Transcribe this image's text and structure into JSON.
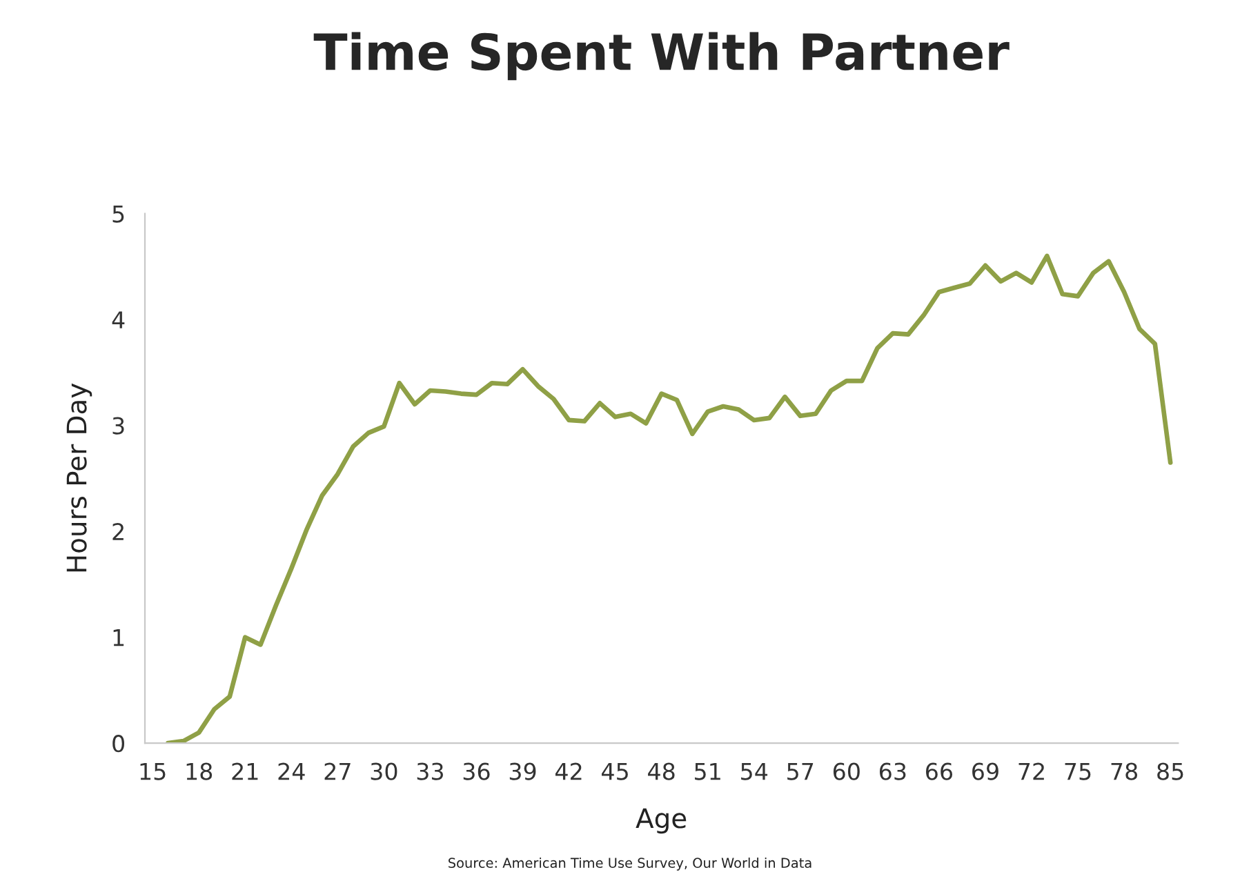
{
  "chart_data": {
    "type": "line",
    "title": "Time Spent With Partner",
    "xlabel": "Age",
    "ylabel": "Hours Per Day",
    "categories": [
      "15",
      null,
      null,
      "18",
      null,
      null,
      "21",
      null,
      null,
      "24",
      null,
      null,
      "27",
      null,
      null,
      "30",
      null,
      null,
      "33",
      null,
      null,
      "36",
      null,
      null,
      "39",
      null,
      null,
      "42",
      null,
      null,
      "45",
      null,
      null,
      "48",
      null,
      null,
      "51",
      null,
      null,
      "54",
      null,
      null,
      "57",
      null,
      null,
      "60",
      null,
      null,
      "63",
      null,
      null,
      "66",
      null,
      null,
      "69",
      null,
      null,
      "72",
      null,
      null,
      "75",
      null,
      null,
      "78",
      null,
      null,
      "85"
    ],
    "series": [
      {
        "color": "#8fa046",
        "values": [
          null,
          0.0,
          0.02,
          0.1,
          0.32,
          0.44,
          1.0,
          0.93,
          1.3,
          1.65,
          2.02,
          2.34,
          2.54,
          2.8,
          2.93,
          2.99,
          3.4,
          3.2,
          3.33,
          3.32,
          3.3,
          3.29,
          3.4,
          3.39,
          3.53,
          3.37,
          3.25,
          3.05,
          3.04,
          3.21,
          3.08,
          3.11,
          3.02,
          3.3,
          3.24,
          2.92,
          3.13,
          3.18,
          3.15,
          3.05,
          3.07,
          3.27,
          3.09,
          3.11,
          3.33,
          3.42,
          3.42,
          3.73,
          3.87,
          3.86,
          4.04,
          4.26,
          4.3,
          4.34,
          4.51,
          4.36,
          4.44,
          4.35,
          4.6,
          4.24,
          4.22,
          4.44,
          4.55,
          4.26,
          3.91,
          3.77,
          2.65
        ]
      }
    ],
    "ylim": [
      0,
      5
    ],
    "yticks": [
      0,
      1,
      2,
      3,
      4,
      5
    ],
    "grid": false,
    "marker": "none",
    "line_style": "solid",
    "annotations": [
      "Source: American Time Use Survey, Our World in Data"
    ]
  }
}
